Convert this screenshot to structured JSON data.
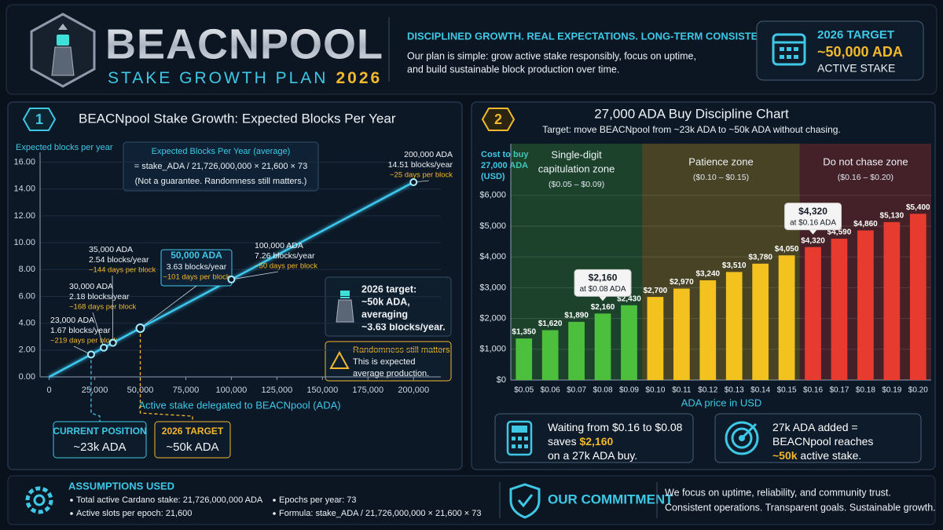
{
  "header": {
    "logo": "BEACNPOOL",
    "subtitle": "STAKE GROWTH PLAN",
    "subtitle_year": "2026",
    "tagline": "DISCIPLINED GROWTH. REAL EXPECTATIONS. LONG-TERM CONSISTENCY.",
    "description": [
      "Our plan is simple: grow active stake responsibly, focus on uptime,",
      "and build sustainable block production over time."
    ],
    "target": {
      "label": "2026 TARGET",
      "value": "~50,000 ADA",
      "caption": "ACTIVE STAKE"
    }
  },
  "chart_data": [
    {
      "type": "line",
      "badge": "1",
      "title": "BEACNpool Stake Growth: Expected Blocks Per Year",
      "xlabel": "Active stake delegated to BEACNpool (ADA)",
      "ylabel": "Expected blocks per year",
      "x": [
        0,
        23000,
        30000,
        35000,
        50000,
        100000,
        200000
      ],
      "values": [
        0,
        1.67,
        2.18,
        2.54,
        3.63,
        7.26,
        14.51
      ],
      "color": "#3ec8f0",
      "xlim": [
        -5000,
        215000
      ],
      "ylim": [
        0,
        16.5
      ],
      "xticks": [
        0,
        {
          "value": 25000,
          "label": "25,000"
        },
        {
          "value": 50000,
          "label": "50,000"
        },
        {
          "value": 75000,
          "label": "75,000"
        },
        {
          "value": 100000,
          "label": "100,000"
        },
        {
          "value": 125000,
          "label": "125,000"
        },
        {
          "value": 150000,
          "label": "150,000"
        },
        {
          "value": 175000,
          "label": "175,000"
        },
        {
          "value": 200000,
          "label": "200,000"
        }
      ],
      "yticks": [
        {
          "value": 0,
          "label": "0.00"
        },
        {
          "value": 2,
          "label": "2.00"
        },
        {
          "value": 4,
          "label": "4.00"
        },
        {
          "value": 6,
          "label": "6.00"
        },
        {
          "value": 8,
          "label": "8.00"
        },
        {
          "value": 10,
          "label": "10.00"
        },
        {
          "value": 12,
          "label": "12.00"
        },
        {
          "value": 14,
          "label": "14.00"
        },
        {
          "value": 16,
          "label": "16.00"
        }
      ],
      "grid": true,
      "annotations": [
        [
          "23,000 ADA",
          "1.67 blocks/year",
          "~219 days per block"
        ],
        [
          "30,000 ADA",
          "2.18 blocks/year",
          "~168 days per block"
        ],
        [
          "35,000 ADA",
          "2.54 blocks/year",
          "~144 days per block"
        ],
        [
          "50,000 ADA",
          "3.63 blocks/year",
          "~101 days per block"
        ],
        [
          "100,000 ADA",
          "7.26 blocks/year",
          "~50 days per block"
        ],
        [
          "200,000 ADA",
          "14.51 blocks/year",
          "~25 days per block"
        ]
      ],
      "formula": {
        "title": "Expected Blocks Per Year (average)",
        "text": "= stake_ADA / 21,726,000,000 × 21,600 × 73",
        "note": "(Not a guarantee. Randomness still matters.)"
      },
      "target_note": [
        "2026 target:",
        "~50k ADA,",
        "averaging",
        "~3.63 blocks/year."
      ],
      "warning": [
        "Randomness still matters.",
        "This is expected",
        "average production."
      ],
      "markers": [
        {
          "label": "CURRENT POSITION",
          "value": "~23k ADA",
          "color": "#3ec8e6"
        },
        {
          "label": "2026 TARGET",
          "value": "~50k ADA",
          "color": "#f2b82e"
        }
      ]
    },
    {
      "type": "bar",
      "badge": "2",
      "title": "27,000 ADA Buy Discipline Chart",
      "subtitle": "Target: move BEACNpool from ~23k ADA to ~50k ADA without chasing.",
      "xlabel": "ADA price in USD",
      "ylabel": [
        "Cost to buy",
        "27,000 ADA",
        "(USD)"
      ],
      "categories": [
        "$0.05",
        "$0.06",
        "$0.07",
        "$0.08",
        "$0.09",
        "$0.10",
        "$0.11",
        "$0.12",
        "$0.13",
        "$0.14",
        "$0.15",
        "$0.16",
        "$0.17",
        "$0.18",
        "$0.19",
        "$0.20"
      ],
      "values": [
        1350,
        1620,
        1890,
        2160,
        2430,
        2700,
        2970,
        3240,
        3510,
        3780,
        4050,
        4320,
        4590,
        4860,
        5130,
        5400
      ],
      "value_labels": [
        "$1,350",
        "$1,620",
        "$1,890",
        "$2,160",
        "$2,430",
        "$2,700",
        "$2,970",
        "$3,240",
        "$3,510",
        "$3,780",
        "$4,050",
        "$4,320",
        "$4,590",
        "$4,860",
        "$5,130",
        "$5,400"
      ],
      "colors": [
        "#4cbf3c",
        "#4cbf3c",
        "#4cbf3c",
        "#4cbf3c",
        "#4cbf3c",
        "#f4c21f",
        "#f4c21f",
        "#f4c21f",
        "#f4c21f",
        "#f4c21f",
        "#f4c21f",
        "#e63b2e",
        "#e63b2e",
        "#e63b2e",
        "#e63b2e",
        "#e63b2e"
      ],
      "ylim": [
        0,
        6300
      ],
      "yticks": [
        {
          "value": 0,
          "label": "$0"
        },
        {
          "value": 1000,
          "label": "$1,000"
        },
        {
          "value": 2000,
          "label": "$2,000"
        },
        {
          "value": 3000,
          "label": "$3,000"
        },
        {
          "value": 4000,
          "label": "$4,000"
        },
        {
          "value": 5000,
          "label": "$5,000"
        },
        {
          "value": 6000,
          "label": "$6,000"
        }
      ],
      "grid": true,
      "zones": [
        {
          "name": [
            "Single-digit",
            "capitulation zone"
          ],
          "range": "($0.05 – $0.09)",
          "color": "#4cbf3c"
        },
        {
          "name": [
            "Patience zone"
          ],
          "range": "($0.10 – $0.15)",
          "color": "#f4c21f"
        },
        {
          "name": [
            "Do not chase zone"
          ],
          "range": "($0.16 – $0.20)",
          "color": "#e63b2e"
        }
      ],
      "callouts": [
        {
          "value": "$2,160",
          "text": "at $0.08 ADA"
        },
        {
          "value": "$4,320",
          "text": "at $0.16 ADA"
        }
      ]
    }
  ],
  "info_boxes": [
    {
      "lines": [
        [
          {
            "text": "Waiting from $0.16 to $0.08",
            "color": "#ffffff"
          }
        ],
        [
          {
            "text": "saves ",
            "color": "#ffffff"
          },
          {
            "text": "$2,160",
            "color": "#f2b82e"
          }
        ],
        [
          {
            "text": "on a 27k ADA buy.",
            "color": "#ffffff"
          }
        ]
      ]
    },
    {
      "lines": [
        [
          {
            "text": "27k ADA added =",
            "color": "#ffffff"
          }
        ],
        [
          {
            "text": "BEACNpool reaches",
            "color": "#ffffff"
          }
        ],
        [
          {
            "text": "~50k",
            "color": "#f2b82e"
          },
          {
            "text": " active stake.",
            "color": "#ffffff"
          }
        ]
      ]
    }
  ],
  "footer": {
    "assumptions": {
      "title": "ASSUMPTIONS USED",
      "items": [
        "Total active Cardano stake: 21,726,000,000 ADA",
        "Active slots per epoch: 21,600",
        "Epochs per year: 73",
        "Formula: stake_ADA / 21,726,000,000 × 21,600 × 73"
      ]
    },
    "commitment": {
      "title": "OUR COMMITMENT",
      "text": [
        "We focus on uptime, reliability, and community trust.",
        "Consistent operations. Transparent goals. Sustainable growth."
      ]
    }
  }
}
